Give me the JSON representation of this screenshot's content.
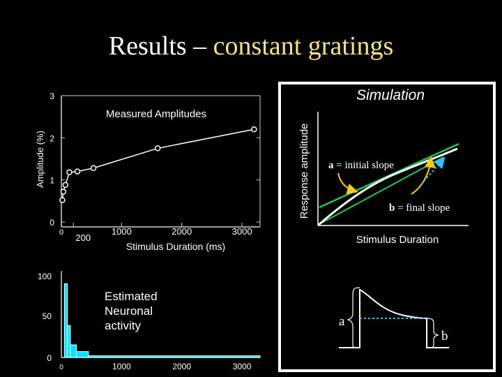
{
  "slide": {
    "title_main": "Results",
    "title_dash": " – ",
    "title_sub": "constant gratings"
  },
  "chart_data": [
    {
      "type": "line",
      "title": "Measured Amplitudes",
      "xlabel": "Stimulus Duration (ms)",
      "ylabel": "Amplitude (%)",
      "xlim": [
        0,
        3300
      ],
      "ylim": [
        0,
        3
      ],
      "x_ticks": [
        0,
        200,
        1000,
        2000,
        3000
      ],
      "y_ticks": [
        0,
        1,
        2,
        3
      ],
      "series": [
        {
          "x": [
            16,
            33,
            67,
            133,
            267,
            533,
            1600,
            3200
          ],
          "y": [
            0.52,
            0.72,
            0.88,
            1.18,
            1.2,
            1.28,
            1.75,
            2.2
          ]
        }
      ],
      "color": "#ffffff"
    },
    {
      "type": "bar",
      "title": "Estimated Neuronal activity",
      "xlim": [
        0,
        3300
      ],
      "ylim": [
        0,
        100
      ],
      "x_ticks": [
        0,
        1000,
        2000,
        3000
      ],
      "y_ticks": [
        0,
        50,
        100
      ],
      "bins": [
        {
          "x0": 50,
          "x1": 100,
          "value": 88
        },
        {
          "x0": 100,
          "x1": 150,
          "value": 38
        },
        {
          "x0": 150,
          "x1": 250,
          "value": 15
        },
        {
          "x0": 250,
          "x1": 450,
          "value": 7
        },
        {
          "x0": 450,
          "x1": 3300,
          "value": 2
        }
      ],
      "color": "#00e5ff"
    }
  ],
  "simulation": {
    "title": "Simulation",
    "ylabel": "Response amplitude",
    "xlabel": "Stimulus Duration",
    "a_label": "a",
    "a_text": " = initial slope",
    "b_label": "b",
    "b_text": " = final slope",
    "trace_a": "a",
    "trace_b": "b",
    "colors": {
      "frame": "#3a4fd8",
      "green": "#22c55e",
      "arrow": "#facc15",
      "dotted": "#38bdf8"
    }
  }
}
